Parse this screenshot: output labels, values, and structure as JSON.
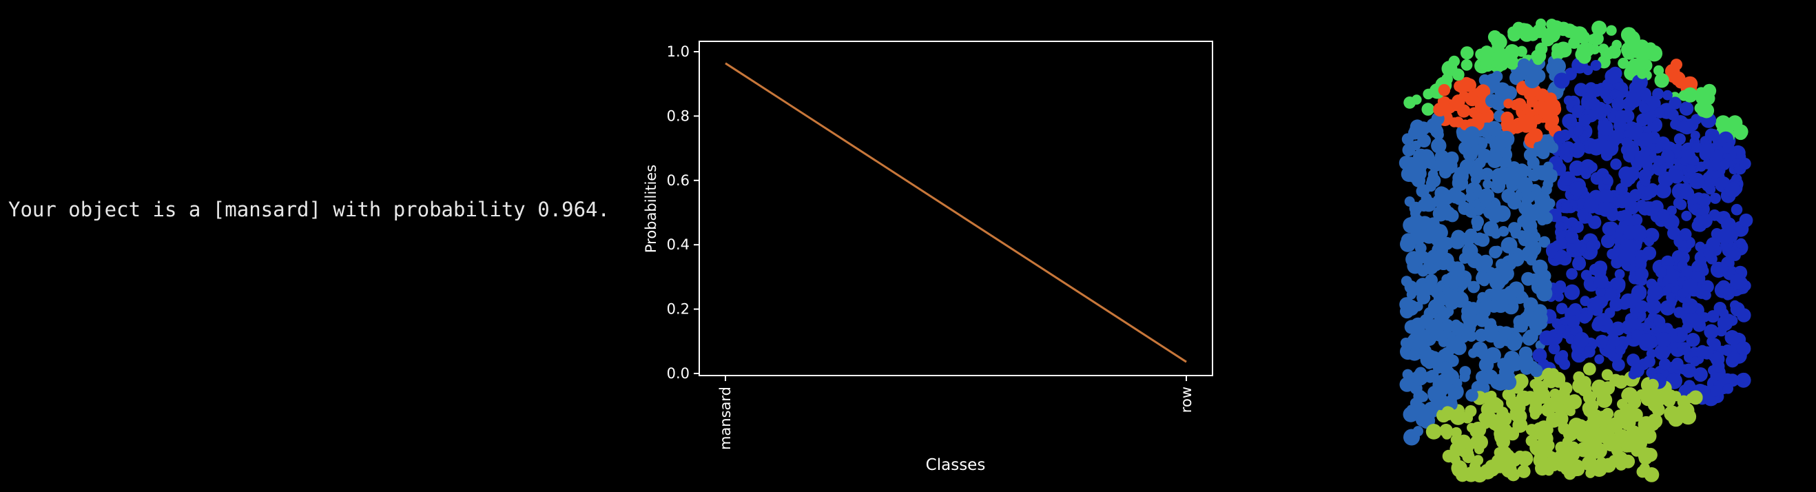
{
  "output": {
    "message": "Your object is a [mansard] with probability 0.964."
  },
  "chart_data": {
    "type": "line",
    "categories": [
      "mansard",
      "row"
    ],
    "series": [
      {
        "values": [
          0.964,
          0.036
        ],
        "color": "#c8773a"
      }
    ],
    "xlabel": "Classes",
    "ylabel": "Probabilities",
    "ylim": [
      0.0,
      1.0
    ],
    "yticks": [
      "0.0",
      "0.2",
      "0.4",
      "0.6",
      "0.8",
      "1.0"
    ],
    "grid": false,
    "background": "#000000",
    "axis_color": "#ffffff"
  },
  "point_cloud": {
    "colors": {
      "dark_blue": "#1a2fbf",
      "mid_blue": "#2a66b8",
      "green": "#48dc5a",
      "orange_red": "#f04a1e",
      "yellow_green": "#9cc83a"
    }
  }
}
